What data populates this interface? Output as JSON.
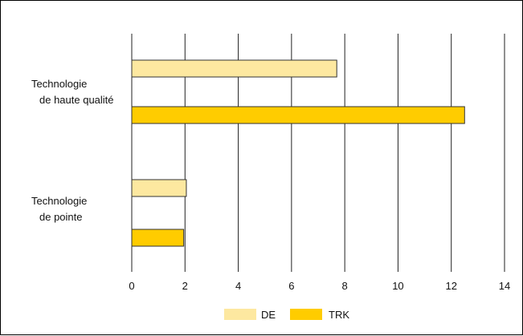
{
  "chart_data": {
    "type": "bar",
    "orientation": "horizontal",
    "categories": [
      [
        "Technologie",
        "de haute qualité"
      ],
      [
        "Technologie",
        "de pointe"
      ]
    ],
    "series": [
      {
        "name": "DE",
        "values": [
          7.7,
          2.05
        ],
        "color": "#fde8a0"
      },
      {
        "name": "TRK",
        "values": [
          12.5,
          1.95
        ],
        "color": "#ffcc00"
      }
    ],
    "xlim": [
      0,
      14
    ],
    "xticks": [
      0,
      2,
      4,
      6,
      8,
      10,
      12,
      14
    ],
    "grid": true,
    "legend_position": "bottom",
    "title": "",
    "xlabel": "",
    "ylabel": ""
  }
}
